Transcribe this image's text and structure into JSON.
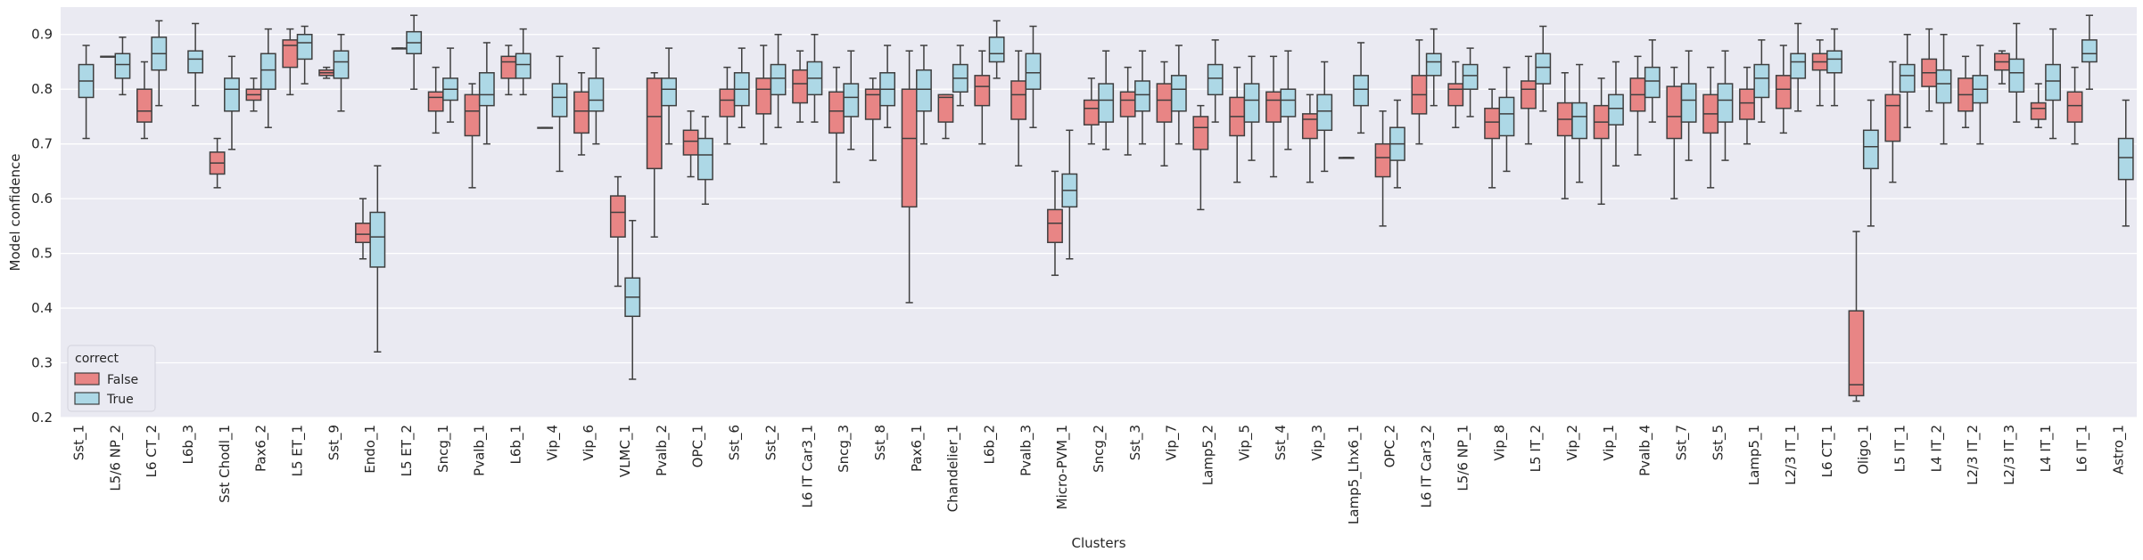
{
  "chart_data": {
    "type": "boxplot",
    "title": "",
    "xlabel": "Clusters",
    "ylabel": "Model confidence",
    "ylim": [
      0.2,
      0.95
    ],
    "yticks": [
      0.2,
      0.3,
      0.4,
      0.5,
      0.6,
      0.7,
      0.8,
      0.9
    ],
    "grid": true,
    "legend": {
      "title": "correct",
      "position": "bottom-left",
      "entries": [
        {
          "name": "False",
          "color": "#e88585"
        },
        {
          "name": "True",
          "color": "#add8e6"
        }
      ]
    },
    "categories": [
      "Sst_1",
      "L5/6 NP_2",
      "L6 CT_2",
      "L6b_3",
      "Sst Chodl_1",
      "Pax6_2",
      "L5 ET_1",
      "Sst_9",
      "Endo_1",
      "L5 ET_2",
      "Sncg_1",
      "Pvalb_1",
      "L6b_1",
      "Vip_4",
      "Vip_6",
      "VLMC_1",
      "Pvalb_2",
      "OPC_1",
      "Sst_6",
      "Sst_2",
      "L6 IT Car3_1",
      "Sncg_3",
      "Sst_8",
      "Pax6_1",
      "Chandelier_1",
      "L6b_2",
      "Pvalb_3",
      "Micro-PVM_1",
      "Sncg_2",
      "Sst_3",
      "Vip_7",
      "Lamp5_2",
      "Vip_5",
      "Sst_4",
      "Vip_3",
      "Lamp5_Lhx6_1",
      "OPC_2",
      "L6 IT Car3_2",
      "L5/6 NP_1",
      "Vip_8",
      "L5 IT_2",
      "Vip_2",
      "Vip_1",
      "Pvalb_4",
      "Sst_7",
      "Sst_5",
      "Lamp5_1",
      "L2/3 IT_1",
      "L6 CT_1",
      "Oligo_1",
      "L5 IT_1",
      "L4 IT_2",
      "L2/3 IT_2",
      "L2/3 IT_3",
      "L4 IT_1",
      "L6 IT_1",
      "Astro_1"
    ],
    "series": [
      {
        "name": "False",
        "boxes": [
          null,
          [
            0.86,
            0.86,
            0.86,
            0.86,
            0.86
          ],
          [
            0.71,
            0.74,
            0.76,
            0.8,
            0.85
          ],
          null,
          [
            0.62,
            0.645,
            0.665,
            0.685,
            0.71
          ],
          [
            0.76,
            0.78,
            0.79,
            0.8,
            0.82
          ],
          [
            0.79,
            0.84,
            0.88,
            0.89,
            0.91
          ],
          [
            0.82,
            0.825,
            0.83,
            0.835,
            0.84
          ],
          [
            0.49,
            0.52,
            0.535,
            0.555,
            0.6
          ],
          [
            0.875,
            0.875,
            0.875,
            0.875,
            0.875
          ],
          [
            0.72,
            0.76,
            0.785,
            0.795,
            0.84
          ],
          [
            0.62,
            0.715,
            0.76,
            0.79,
            0.81
          ],
          [
            0.79,
            0.82,
            0.85,
            0.86,
            0.88
          ],
          [
            0.73,
            0.73,
            0.73,
            0.73,
            0.73
          ],
          [
            0.68,
            0.72,
            0.76,
            0.795,
            0.83
          ],
          [
            0.44,
            0.53,
            0.575,
            0.605,
            0.64
          ],
          [
            0.53,
            0.655,
            0.75,
            0.82,
            0.83
          ],
          [
            0.64,
            0.68,
            0.705,
            0.725,
            0.76
          ],
          [
            0.7,
            0.75,
            0.78,
            0.8,
            0.84
          ],
          [
            0.7,
            0.755,
            0.8,
            0.82,
            0.88
          ],
          [
            0.74,
            0.775,
            0.81,
            0.835,
            0.87
          ],
          [
            0.63,
            0.72,
            0.76,
            0.795,
            0.84
          ],
          [
            0.67,
            0.745,
            0.79,
            0.8,
            0.82
          ],
          [
            0.41,
            0.585,
            0.71,
            0.8,
            0.87
          ],
          [
            0.71,
            0.74,
            0.785,
            0.79,
            0.79
          ],
          [
            0.7,
            0.77,
            0.805,
            0.825,
            0.87
          ],
          [
            0.66,
            0.745,
            0.79,
            0.815,
            0.87
          ],
          [
            0.46,
            0.52,
            0.555,
            0.58,
            0.65
          ],
          [
            0.7,
            0.735,
            0.765,
            0.78,
            0.82
          ],
          [
            0.68,
            0.75,
            0.78,
            0.795,
            0.84
          ],
          [
            0.66,
            0.74,
            0.78,
            0.81,
            0.85
          ],
          [
            0.58,
            0.69,
            0.73,
            0.75,
            0.77
          ],
          [
            0.63,
            0.715,
            0.75,
            0.785,
            0.84
          ],
          [
            0.64,
            0.74,
            0.78,
            0.795,
            0.86
          ],
          [
            0.63,
            0.71,
            0.745,
            0.755,
            0.79
          ],
          [
            0.675,
            0.675,
            0.675,
            0.675,
            0.675
          ],
          [
            0.55,
            0.64,
            0.675,
            0.7,
            0.76
          ],
          [
            0.7,
            0.755,
            0.79,
            0.825,
            0.89
          ],
          [
            0.73,
            0.77,
            0.8,
            0.81,
            0.85
          ],
          [
            0.62,
            0.71,
            0.74,
            0.765,
            0.8
          ],
          [
            0.7,
            0.765,
            0.8,
            0.815,
            0.86
          ],
          [
            0.6,
            0.715,
            0.745,
            0.775,
            0.83
          ],
          [
            0.59,
            0.71,
            0.74,
            0.77,
            0.82
          ],
          [
            0.68,
            0.76,
            0.79,
            0.82,
            0.86
          ],
          [
            0.6,
            0.71,
            0.75,
            0.805,
            0.84
          ],
          [
            0.62,
            0.72,
            0.755,
            0.79,
            0.84
          ],
          [
            0.7,
            0.745,
            0.775,
            0.8,
            0.84
          ],
          [
            0.72,
            0.765,
            0.8,
            0.825,
            0.88
          ],
          [
            0.77,
            0.835,
            0.85,
            0.865,
            0.89
          ],
          [
            0.23,
            0.24,
            0.26,
            0.395,
            0.54
          ],
          [
            0.63,
            0.705,
            0.77,
            0.79,
            0.85
          ],
          [
            0.76,
            0.805,
            0.83,
            0.855,
            0.91
          ],
          [
            0.73,
            0.76,
            0.79,
            0.82,
            0.86
          ],
          [
            0.81,
            0.835,
            0.85,
            0.865,
            0.87
          ],
          [
            0.73,
            0.745,
            0.765,
            0.775,
            0.81
          ],
          [
            0.7,
            0.74,
            0.77,
            0.795,
            0.84
          ],
          null
        ]
      },
      {
        "name": "True",
        "boxes": [
          [
            0.71,
            0.785,
            0.815,
            0.845,
            0.88
          ],
          [
            0.79,
            0.82,
            0.845,
            0.865,
            0.895
          ],
          [
            0.77,
            0.835,
            0.865,
            0.895,
            0.925
          ],
          [
            0.77,
            0.83,
            0.855,
            0.87,
            0.92
          ],
          [
            0.69,
            0.76,
            0.8,
            0.82,
            0.86
          ],
          [
            0.73,
            0.8,
            0.835,
            0.865,
            0.91
          ],
          [
            0.81,
            0.855,
            0.885,
            0.9,
            0.915
          ],
          [
            0.76,
            0.82,
            0.85,
            0.87,
            0.9
          ],
          [
            0.32,
            0.475,
            0.53,
            0.575,
            0.66
          ],
          [
            0.8,
            0.865,
            0.885,
            0.905,
            0.935
          ],
          [
            0.74,
            0.78,
            0.8,
            0.82,
            0.875
          ],
          [
            0.7,
            0.77,
            0.79,
            0.83,
            0.885
          ],
          [
            0.79,
            0.82,
            0.845,
            0.865,
            0.91
          ],
          [
            0.65,
            0.75,
            0.785,
            0.81,
            0.86
          ],
          [
            0.7,
            0.76,
            0.78,
            0.82,
            0.875
          ],
          [
            0.27,
            0.385,
            0.42,
            0.455,
            0.56
          ],
          [
            0.7,
            0.77,
            0.8,
            0.82,
            0.875
          ],
          [
            0.59,
            0.635,
            0.68,
            0.71,
            0.75
          ],
          [
            0.73,
            0.77,
            0.8,
            0.83,
            0.875
          ],
          [
            0.73,
            0.79,
            0.82,
            0.845,
            0.9
          ],
          [
            0.74,
            0.79,
            0.82,
            0.85,
            0.9
          ],
          [
            0.69,
            0.75,
            0.785,
            0.81,
            0.87
          ],
          [
            0.73,
            0.77,
            0.8,
            0.83,
            0.88
          ],
          [
            0.7,
            0.76,
            0.8,
            0.835,
            0.88
          ],
          [
            0.77,
            0.795,
            0.82,
            0.845,
            0.88
          ],
          [
            0.82,
            0.85,
            0.865,
            0.895,
            0.925
          ],
          [
            0.73,
            0.8,
            0.83,
            0.865,
            0.915
          ],
          [
            0.49,
            0.585,
            0.615,
            0.645,
            0.725
          ],
          [
            0.69,
            0.74,
            0.78,
            0.81,
            0.87
          ],
          [
            0.7,
            0.76,
            0.79,
            0.815,
            0.87
          ],
          [
            0.7,
            0.76,
            0.8,
            0.825,
            0.88
          ],
          [
            0.74,
            0.79,
            0.82,
            0.845,
            0.89
          ],
          [
            0.67,
            0.74,
            0.78,
            0.81,
            0.86
          ],
          [
            0.69,
            0.75,
            0.78,
            0.8,
            0.87
          ],
          [
            0.65,
            0.725,
            0.76,
            0.79,
            0.85
          ],
          [
            0.72,
            0.77,
            0.8,
            0.825,
            0.885
          ],
          [
            0.62,
            0.67,
            0.7,
            0.73,
            0.78
          ],
          [
            0.77,
            0.825,
            0.85,
            0.865,
            0.91
          ],
          [
            0.75,
            0.8,
            0.825,
            0.845,
            0.875
          ],
          [
            0.65,
            0.715,
            0.755,
            0.785,
            0.84
          ],
          [
            0.76,
            0.81,
            0.84,
            0.865,
            0.915
          ],
          [
            0.63,
            0.71,
            0.75,
            0.775,
            0.845
          ],
          [
            0.66,
            0.735,
            0.765,
            0.79,
            0.85
          ],
          [
            0.74,
            0.785,
            0.815,
            0.84,
            0.89
          ],
          [
            0.67,
            0.74,
            0.78,
            0.81,
            0.87
          ],
          [
            0.67,
            0.74,
            0.78,
            0.81,
            0.87
          ],
          [
            0.74,
            0.785,
            0.82,
            0.845,
            0.89
          ],
          [
            0.76,
            0.82,
            0.85,
            0.865,
            0.92
          ],
          [
            0.77,
            0.83,
            0.855,
            0.87,
            0.91
          ],
          [
            0.55,
            0.655,
            0.695,
            0.725,
            0.78
          ],
          [
            0.73,
            0.795,
            0.825,
            0.845,
            0.9
          ],
          [
            0.7,
            0.775,
            0.81,
            0.835,
            0.9
          ],
          [
            0.7,
            0.775,
            0.8,
            0.825,
            0.88
          ],
          [
            0.74,
            0.795,
            0.83,
            0.855,
            0.92
          ],
          [
            0.71,
            0.78,
            0.815,
            0.845,
            0.91
          ],
          [
            0.8,
            0.85,
            0.865,
            0.89,
            0.935
          ],
          [
            0.55,
            0.635,
            0.675,
            0.71,
            0.78
          ]
        ]
      }
    ]
  }
}
